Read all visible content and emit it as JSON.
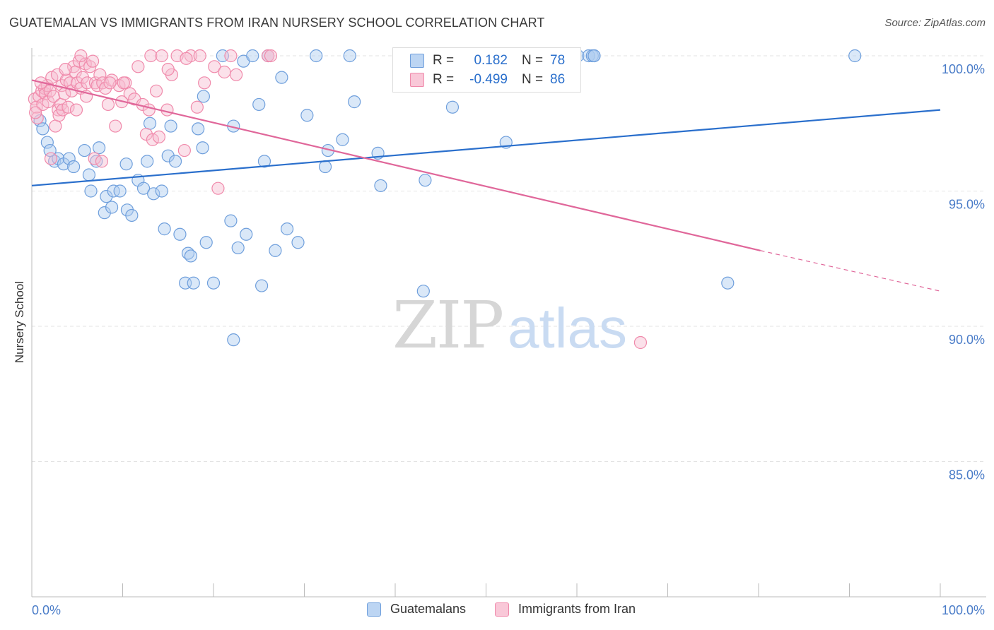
{
  "header": {
    "title": "GUATEMALAN VS IMMIGRANTS FROM IRAN NURSERY SCHOOL CORRELATION CHART",
    "source": "Source: ZipAtlas.com"
  },
  "watermark": {
    "zip": "ZIP",
    "atlas": "atlas"
  },
  "colors": {
    "blue": "#6f9fdc",
    "blue_fill": "#aecbf0",
    "blue_line": "#2a6fcc",
    "pink": "#f08aab",
    "pink_fill": "#f7bdd0",
    "pink_line": "#e0679a",
    "axis_text": "#4a7cc8"
  },
  "legend_top": {
    "rows": [
      {
        "r_label": "R =",
        "r_value": "0.182",
        "n_label": "N =",
        "n_value": "78"
      },
      {
        "r_label": "R =",
        "r_value": "-0.499",
        "n_label": "N =",
        "n_value": "86"
      }
    ]
  },
  "legend_bottom": {
    "items": [
      "Guatemalans",
      "Immigrants from Iran"
    ]
  },
  "chart_data": {
    "type": "scatter",
    "title": "GUATEMALAN VS IMMIGRANTS FROM IRAN NURSERY SCHOOL CORRELATION CHART",
    "xlabel": "",
    "ylabel": "Nursery School",
    "xlim": [
      0,
      100
    ],
    "ylim": [
      80.5,
      100.8
    ],
    "x_tick_labels": [
      "0.0%",
      "100.0%"
    ],
    "y_tick_labels": [
      "100.0%",
      "95.0%",
      "90.0%",
      "85.0%"
    ],
    "y_ticks": [
      100,
      95,
      90,
      85
    ],
    "grid": true,
    "legend_placement": "bottom",
    "series": [
      {
        "name": "Guatemalans",
        "r": 0.182,
        "n": 78,
        "trend": {
          "x0": 0,
          "y0": 95.2,
          "x1": 100,
          "y1": 98.0
        },
        "points": [
          [
            0.9,
            97.6
          ],
          [
            1.2,
            97.3
          ],
          [
            1.7,
            96.8
          ],
          [
            2.0,
            96.5
          ],
          [
            2.5,
            96.1
          ],
          [
            2.9,
            96.2
          ],
          [
            3.5,
            96.0
          ],
          [
            4.1,
            96.2
          ],
          [
            4.6,
            95.9
          ],
          [
            5.8,
            96.5
          ],
          [
            7.4,
            96.6
          ],
          [
            6.3,
            95.6
          ],
          [
            7.1,
            96.1
          ],
          [
            6.5,
            95.0
          ],
          [
            8.2,
            94.8
          ],
          [
            9.0,
            95.0
          ],
          [
            9.7,
            95.0
          ],
          [
            8.0,
            94.2
          ],
          [
            8.8,
            94.4
          ],
          [
            10.5,
            94.3
          ],
          [
            11.0,
            94.1
          ],
          [
            10.4,
            96.0
          ],
          [
            11.7,
            95.4
          ],
          [
            12.3,
            95.1
          ],
          [
            12.7,
            96.1
          ],
          [
            13.0,
            97.5
          ],
          [
            13.4,
            94.9
          ],
          [
            14.3,
            95.0
          ],
          [
            14.6,
            93.6
          ],
          [
            15.0,
            96.3
          ],
          [
            15.3,
            97.4
          ],
          [
            15.8,
            96.1
          ],
          [
            16.3,
            93.4
          ],
          [
            16.9,
            91.6
          ],
          [
            17.2,
            92.7
          ],
          [
            17.5,
            92.6
          ],
          [
            17.8,
            91.6
          ],
          [
            18.3,
            97.3
          ],
          [
            18.8,
            96.6
          ],
          [
            18.9,
            98.5
          ],
          [
            19.2,
            93.1
          ],
          [
            20.0,
            91.6
          ],
          [
            21.0,
            100.0
          ],
          [
            21.9,
            93.9
          ],
          [
            22.2,
            89.5
          ],
          [
            22.7,
            92.9
          ],
          [
            22.2,
            97.4
          ],
          [
            23.3,
            99.8
          ],
          [
            23.6,
            93.4
          ],
          [
            24.3,
            100.0
          ],
          [
            25.0,
            98.2
          ],
          [
            25.3,
            91.5
          ],
          [
            25.6,
            96.1
          ],
          [
            26.0,
            100.0
          ],
          [
            26.8,
            92.8
          ],
          [
            27.5,
            99.2
          ],
          [
            28.1,
            93.6
          ],
          [
            29.3,
            93.1
          ],
          [
            30.3,
            97.8
          ],
          [
            31.3,
            100.0
          ],
          [
            32.3,
            95.9
          ],
          [
            32.6,
            96.5
          ],
          [
            34.2,
            96.9
          ],
          [
            35.0,
            100.0
          ],
          [
            35.5,
            98.3
          ],
          [
            38.1,
            96.4
          ],
          [
            38.4,
            95.2
          ],
          [
            43.1,
            91.3
          ],
          [
            43.3,
            95.4
          ],
          [
            46.3,
            98.1
          ],
          [
            52.2,
            96.8
          ],
          [
            60.1,
            100.0
          ],
          [
            61.3,
            100.0
          ],
          [
            61.7,
            100.0
          ],
          [
            61.9,
            100.0
          ],
          [
            61.9,
            100.0
          ],
          [
            76.6,
            91.6
          ],
          [
            90.6,
            100.0
          ]
        ]
      },
      {
        "name": "Immigrants from Iran",
        "r": -0.499,
        "n": 86,
        "trend": {
          "x0": 0,
          "y0": 99.1,
          "x1": 80.2,
          "y1": 92.8,
          "dash_x1": 100,
          "dash_y1": 91.3
        },
        "points": [
          [
            0.3,
            98.4
          ],
          [
            0.5,
            98.1
          ],
          [
            0.6,
            97.7
          ],
          [
            0.8,
            98.5
          ],
          [
            1.1,
            98.7
          ],
          [
            1.2,
            98.2
          ],
          [
            1.4,
            98.8
          ],
          [
            1.5,
            98.6
          ],
          [
            1.7,
            98.9
          ],
          [
            1.8,
            98.3
          ],
          [
            2.0,
            98.7
          ],
          [
            2.2,
            99.2
          ],
          [
            2.4,
            98.5
          ],
          [
            2.6,
            97.4
          ],
          [
            2.8,
            99.3
          ],
          [
            2.9,
            98.0
          ],
          [
            3.0,
            97.8
          ],
          [
            3.2,
            98.2
          ],
          [
            3.3,
            98.9
          ],
          [
            3.4,
            98.0
          ],
          [
            3.6,
            98.6
          ],
          [
            3.8,
            99.1
          ],
          [
            4.0,
            98.1
          ],
          [
            4.2,
            99.0
          ],
          [
            4.4,
            98.7
          ],
          [
            4.6,
            99.6
          ],
          [
            4.8,
            99.4
          ],
          [
            5.0,
            99.0
          ],
          [
            5.2,
            99.8
          ],
          [
            5.4,
            98.8
          ],
          [
            5.6,
            99.2
          ],
          [
            5.9,
            99.7
          ],
          [
            6.1,
            99.0
          ],
          [
            6.4,
            99.6
          ],
          [
            6.7,
            99.8
          ],
          [
            7.0,
            99.0
          ],
          [
            7.2,
            98.9
          ],
          [
            7.5,
            99.3
          ],
          [
            7.8,
            99.0
          ],
          [
            8.1,
            98.8
          ],
          [
            8.4,
            98.2
          ],
          [
            8.8,
            99.1
          ],
          [
            9.2,
            97.4
          ],
          [
            9.6,
            98.9
          ],
          [
            9.9,
            98.3
          ],
          [
            10.3,
            99.0
          ],
          [
            10.8,
            98.6
          ],
          [
            11.3,
            98.4
          ],
          [
            11.7,
            99.6
          ],
          [
            12.2,
            98.2
          ],
          [
            12.6,
            97.1
          ],
          [
            13.1,
            100.0
          ],
          [
            13.3,
            96.9
          ],
          [
            13.7,
            98.7
          ],
          [
            14.3,
            100.0
          ],
          [
            14.9,
            98.0
          ],
          [
            15.4,
            99.3
          ],
          [
            16.0,
            100.0
          ],
          [
            16.8,
            96.5
          ],
          [
            17.5,
            100.0
          ],
          [
            18.2,
            98.1
          ],
          [
            18.5,
            100.0
          ],
          [
            20.1,
            99.6
          ],
          [
            20.5,
            95.1
          ],
          [
            21.2,
            99.4
          ],
          [
            21.9,
            100.0
          ],
          [
            26.0,
            100.0
          ],
          [
            26.3,
            100.0
          ],
          [
            67.0,
            89.4
          ],
          [
            2.1,
            96.2
          ],
          [
            4.9,
            98.0
          ],
          [
            5.4,
            100.0
          ],
          [
            6.9,
            96.2
          ],
          [
            7.7,
            96.1
          ],
          [
            0.4,
            97.9
          ],
          [
            1.0,
            99.0
          ],
          [
            3.7,
            99.5
          ],
          [
            6.0,
            98.5
          ],
          [
            8.6,
            99.0
          ],
          [
            10.1,
            99.0
          ],
          [
            12.9,
            98.0
          ],
          [
            14.0,
            97.0
          ],
          [
            15.0,
            99.5
          ],
          [
            17.0,
            99.9
          ],
          [
            19.0,
            99.0
          ],
          [
            22.5,
            99.3
          ]
        ]
      }
    ]
  }
}
